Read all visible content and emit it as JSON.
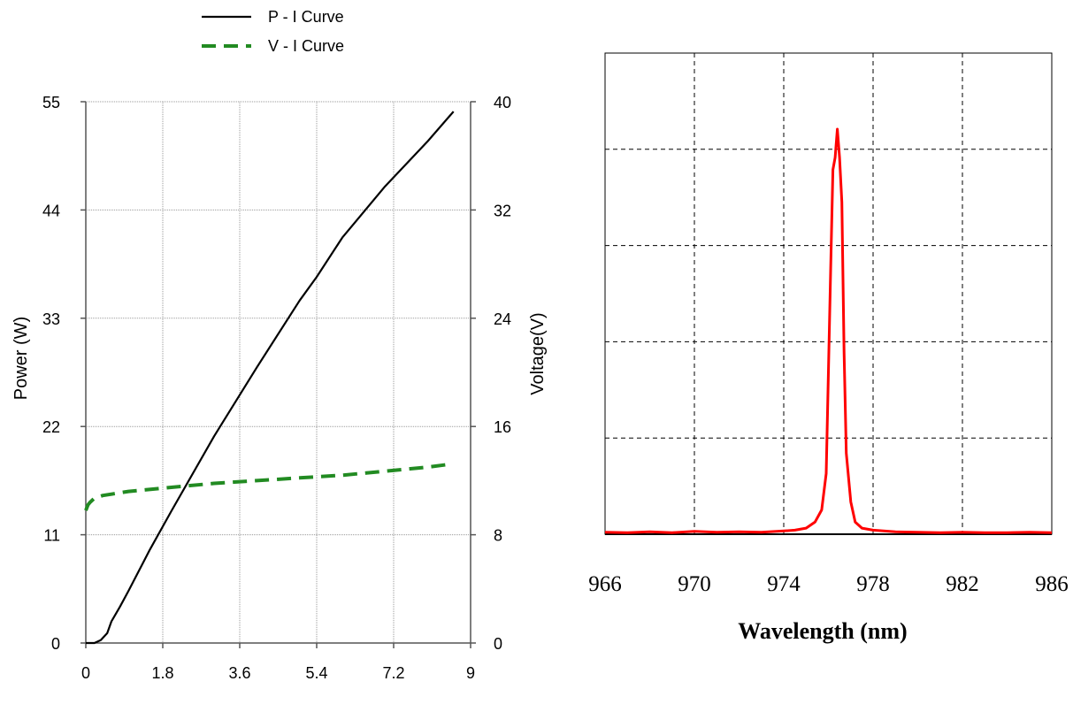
{
  "chart_data": [
    {
      "type": "line",
      "title": "",
      "xlabel": "",
      "ylabel": "Power (W)",
      "y2label": "Voltage(V)",
      "xlim": [
        0,
        9
      ],
      "ylim": [
        0,
        55
      ],
      "y2lim": [
        0,
        40
      ],
      "x_ticks": [
        "0",
        "1.8",
        "3.6",
        "5.4",
        "7.2",
        "9"
      ],
      "y_ticks": [
        "0",
        "11",
        "22",
        "33",
        "44",
        "55"
      ],
      "y2_ticks": [
        "0",
        "8",
        "16",
        "24",
        "32",
        "40"
      ],
      "grid": true,
      "legend_position": "top",
      "series": [
        {
          "name": "P - I Curve",
          "axis": "left",
          "color": "#000000",
          "style": "solid",
          "x": [
            0,
            0.2,
            0.35,
            0.5,
            0.6,
            0.8,
            1.0,
            1.5,
            2.0,
            3.0,
            4.0,
            5.0,
            5.4,
            6.0,
            7.0,
            8.0,
            8.6
          ],
          "y": [
            0,
            0,
            0.3,
            1.0,
            2.2,
            3.7,
            5.3,
            9.5,
            13.4,
            21.0,
            28.0,
            34.8,
            37.2,
            41.2,
            46.4,
            51.0,
            54.0
          ]
        },
        {
          "name": "V - I Curve",
          "axis": "right",
          "color": "#228B22",
          "style": "dashed",
          "x": [
            0,
            0.05,
            0.1,
            0.2,
            0.4,
            1.0,
            2.0,
            3.0,
            4.0,
            5.0,
            6.0,
            7.0,
            8.0,
            8.5
          ],
          "y": [
            9.8,
            10.2,
            10.4,
            10.7,
            10.9,
            11.2,
            11.5,
            11.8,
            12.0,
            12.2,
            12.4,
            12.7,
            13.0,
            13.2
          ]
        }
      ]
    },
    {
      "type": "line",
      "title": "",
      "xlabel": "Wavelength (nm)",
      "ylabel": "",
      "xlim": [
        966,
        986
      ],
      "ylim": [
        0,
        1
      ],
      "x_ticks": [
        "966",
        "970",
        "974",
        "978",
        "982",
        "986"
      ],
      "grid": true,
      "series": [
        {
          "name": "",
          "color": "#ff0000",
          "x": [
            966,
            967,
            968,
            969,
            970,
            971,
            972,
            973,
            974,
            974.5,
            975,
            975.4,
            975.7,
            975.9,
            976.0,
            976.1,
            976.2,
            976.3,
            976.4,
            976.5,
            976.6,
            976.7,
            976.8,
            977.0,
            977.2,
            977.5,
            978,
            979,
            980,
            981,
            982,
            983,
            984,
            985,
            986
          ],
          "y": [
            0.005,
            0.004,
            0.006,
            0.004,
            0.007,
            0.005,
            0.006,
            0.005,
            0.008,
            0.01,
            0.015,
            0.03,
            0.06,
            0.15,
            0.4,
            0.65,
            0.9,
            0.93,
            1.0,
            0.93,
            0.82,
            0.45,
            0.2,
            0.08,
            0.03,
            0.015,
            0.01,
            0.006,
            0.005,
            0.004,
            0.005,
            0.004,
            0.004,
            0.005,
            0.004
          ]
        }
      ]
    }
  ]
}
